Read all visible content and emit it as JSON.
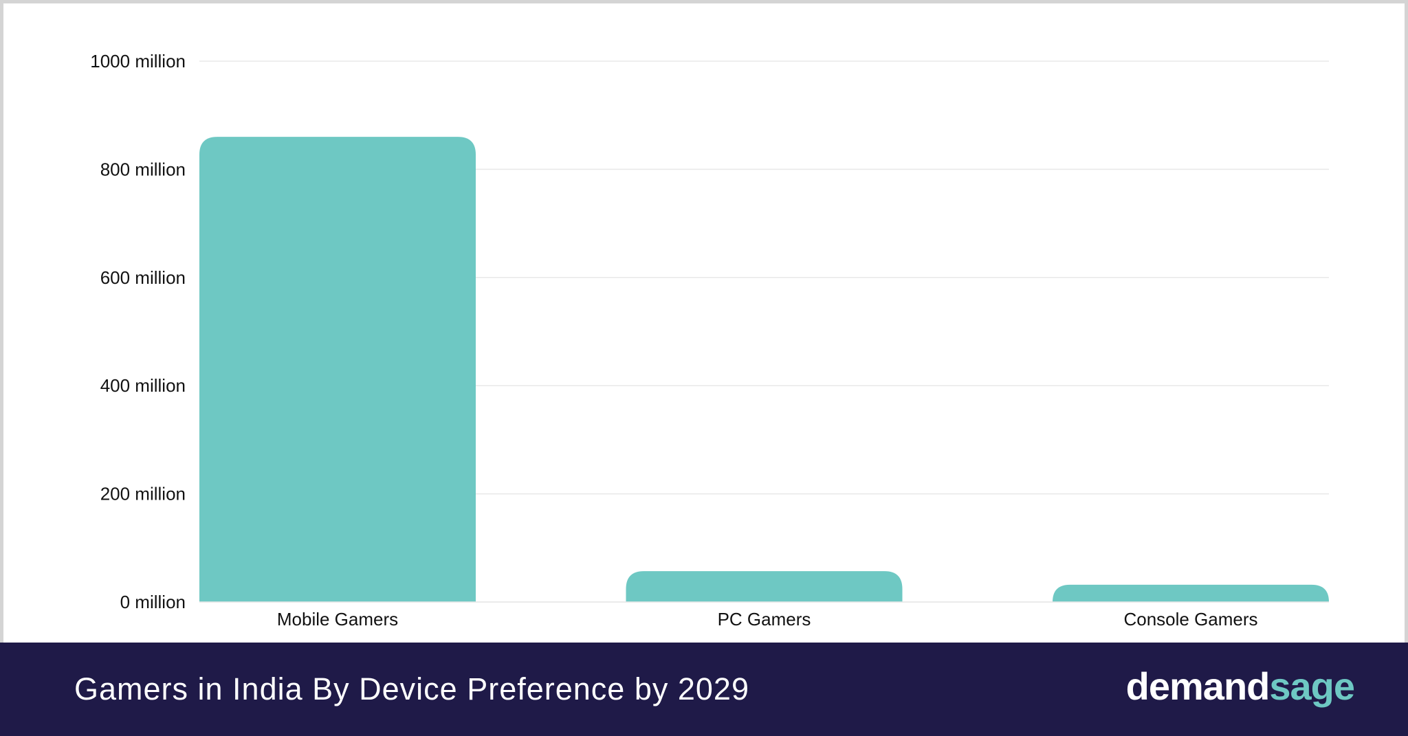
{
  "chart_data": {
    "type": "bar",
    "title": "Gamers in India By Device Preference by 2029",
    "categories": [
      "Mobile Gamers",
      "PC Gamers",
      "Console Gamers"
    ],
    "values": [
      860,
      57,
      32
    ],
    "unit": "million",
    "ylim": [
      0,
      1000
    ],
    "yticks": [
      0,
      200,
      400,
      600,
      800,
      1000
    ],
    "ytick_labels": [
      "0 million",
      "200 million",
      "400 million",
      "600 million",
      "800 million",
      "1000 million"
    ],
    "xlabel": "",
    "ylabel": "",
    "grid": true,
    "bar_color": "#6ec8c3"
  },
  "footer": {
    "title": "Gamers in India By Device Preference by 2029",
    "brand_part1": "demand",
    "brand_part2": "sage",
    "background": "#1f1a48"
  }
}
